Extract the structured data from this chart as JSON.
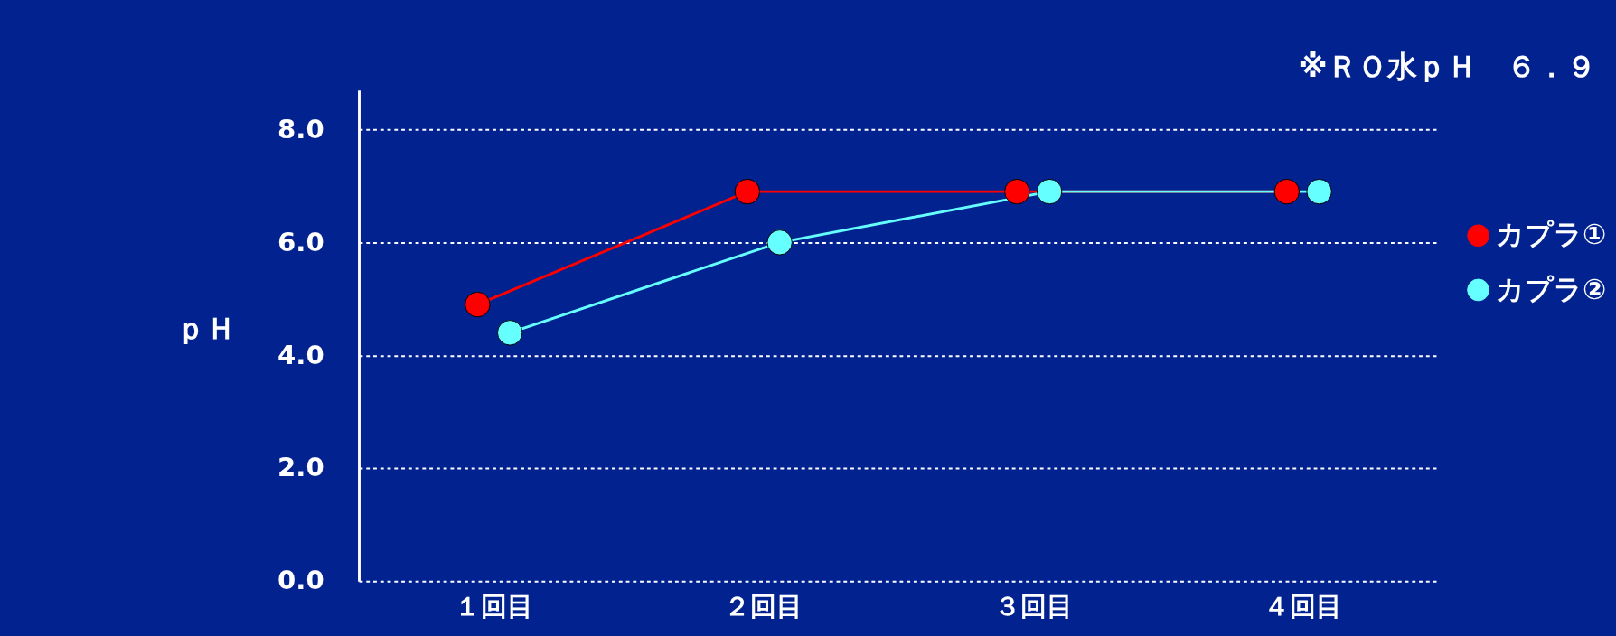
{
  "chart_data": {
    "type": "line",
    "ylabel": "ｐＨ",
    "categories": [
      "１回目",
      "２回目",
      "３回目",
      "４回目"
    ],
    "series": [
      {
        "name": "カプラ①",
        "color": "#ff0000",
        "values": [
          4.9,
          6.9,
          6.9,
          6.9
        ]
      },
      {
        "name": "カプラ②",
        "color": "#66ffff",
        "values": [
          4.4,
          6.0,
          6.9,
          6.9
        ]
      }
    ],
    "ylim": [
      0,
      8.7
    ],
    "yticks": [
      {
        "value": 0,
        "label": "0.0"
      },
      {
        "value": 2,
        "label": "2.0"
      },
      {
        "value": 4,
        "label": "4.0"
      },
      {
        "value": 6,
        "label": "6.0"
      },
      {
        "value": 8,
        "label": "8.0"
      }
    ],
    "grid": "y",
    "legend": "right",
    "marker": "circle",
    "line_style": "solid",
    "annotations": [
      "※ＲＯ水ｐＨ　６．９"
    ]
  }
}
